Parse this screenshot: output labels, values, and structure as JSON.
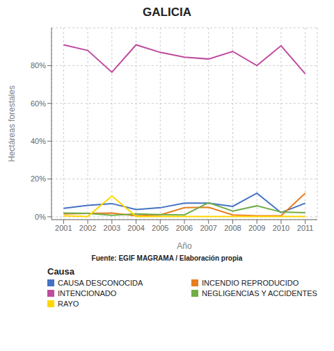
{
  "chart_data": {
    "type": "line",
    "title": "GALICIA",
    "xlabel": "Año",
    "ylabel": "Hectáreas forestales",
    "source": "Fuente: EGIF MAGRAMA / Elaboración propia",
    "legend_title": "Causa",
    "x": [
      2001,
      2002,
      2003,
      2004,
      2005,
      2006,
      2007,
      2008,
      2009,
      2010,
      2011
    ],
    "series": [
      {
        "name": "CAUSA DESCONOCIDA",
        "color": "#4472C4",
        "values": [
          0.045,
          0.06,
          0.07,
          0.038,
          0.048,
          0.072,
          0.072,
          0.055,
          0.125,
          0.022,
          0.072
        ]
      },
      {
        "name": "INCENDIO REPRODUCIDO",
        "color": "#E67E22",
        "values": [
          0.015,
          0.018,
          0.02,
          0.005,
          0.01,
          0.048,
          0.05,
          0.01,
          0.005,
          0.005,
          0.125
        ]
      },
      {
        "name": "INTENCIONADO",
        "color": "#BE4B9E",
        "values": [
          0.91,
          0.88,
          0.765,
          0.91,
          0.87,
          0.845,
          0.835,
          0.875,
          0.8,
          0.905,
          0.757
        ]
      },
      {
        "name": "NEGLIGENCIAS Y ACCIDENTES",
        "color": "#70AD47",
        "values": [
          0.02,
          0.018,
          0.008,
          0.015,
          0.012,
          0.01,
          0.075,
          0.03,
          0.058,
          0.025,
          0.022
        ]
      },
      {
        "name": "RAYO",
        "color": "#FFD700",
        "values": [
          0.005,
          0.002,
          0.11,
          0.002,
          0.002,
          0.002,
          0.002,
          0.002,
          0.002,
          0.002,
          0.002
        ]
      }
    ],
    "xlim": [
      2000.5,
      2011.5
    ],
    "xticks": [
      2001,
      2002,
      2003,
      2004,
      2005,
      2006,
      2007,
      2008,
      2009,
      2010,
      2011
    ],
    "ylim": [
      -0.015,
      1.0
    ],
    "yticks": [
      {
        "value": 0.0,
        "label": "0%"
      },
      {
        "value": 0.2,
        "label": "20%"
      },
      {
        "value": 0.4,
        "label": "40%"
      },
      {
        "value": 0.6,
        "label": "60%"
      },
      {
        "value": 0.8,
        "label": "80%"
      }
    ],
    "grid": true,
    "legend": "bottom"
  }
}
